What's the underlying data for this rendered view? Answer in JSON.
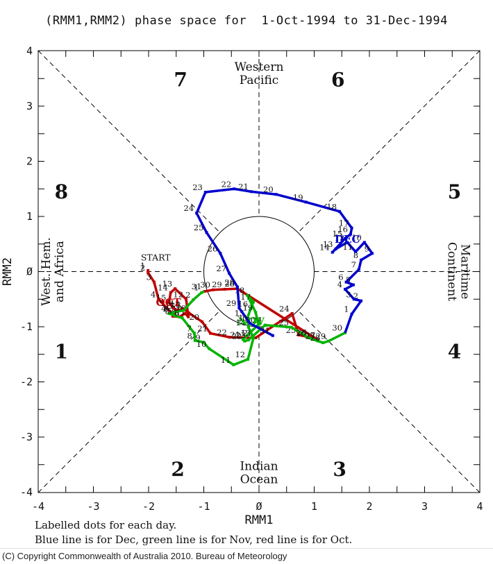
{
  "title": "(RMM1,RMM2) phase space for  1-Oct-1994 to 31-Dec-1994",
  "footer": {
    "line1": "Labelled dots for each day.",
    "line2": "Blue line is for Dec, green line is for Nov, red line is for Oct."
  },
  "copyright": "(C) Copyright Commonwealth of Australia 2010. Bureau of Meteorology",
  "chart_data": {
    "type": "line",
    "xlabel": "RMM1",
    "ylabel": "RMM2",
    "xlim": [
      -4,
      4
    ],
    "ylim": [
      -4,
      4
    ],
    "unit_circle_radius": 1,
    "x_ticks": [
      "-4",
      "-3",
      "-2",
      "-1",
      "Ø",
      "1",
      "2",
      "3",
      "4"
    ],
    "y_ticks": [
      "4",
      "3",
      "2",
      "1",
      "Ø",
      "-1",
      "-2",
      "-3",
      "-4"
    ],
    "start_label": {
      "text": "START",
      "x": -2.14,
      "y": 0.2
    },
    "phase_labels": [
      {
        "num": "1",
        "x": -3.58,
        "y": -1.46
      },
      {
        "num": "2",
        "x": -1.47,
        "y": -3.59
      },
      {
        "num": "3",
        "x": 1.46,
        "y": -3.59
      },
      {
        "num": "4",
        "x": 3.54,
        "y": -1.46
      },
      {
        "num": "5",
        "x": 3.54,
        "y": 1.44
      },
      {
        "num": "6",
        "x": 1.43,
        "y": 3.47
      },
      {
        "num": "7",
        "x": -1.42,
        "y": 3.47
      },
      {
        "num": "8",
        "x": -3.58,
        "y": 1.44
      }
    ],
    "region_labels": [
      {
        "name": "western-pacific",
        "lines": [
          "Western",
          "Pacific"
        ],
        "x": 0,
        "y": 3.6,
        "rotate": 0
      },
      {
        "name": "indian-ocean",
        "lines": [
          "Indian",
          "Ocean"
        ],
        "x": 0,
        "y": -3.64,
        "rotate": 0
      },
      {
        "name": "west-hem-africa",
        "lines": [
          "West. Hem.",
          "and Africa"
        ],
        "x": -3.74,
        "y": 0,
        "rotate": -90
      },
      {
        "name": "maritime-continent",
        "lines": [
          "Maritime",
          "Continent"
        ],
        "x": 3.62,
        "y": 0,
        "rotate": 90
      }
    ],
    "series": [
      {
        "name": "Oct",
        "color": "#c00000",
        "month_label": "OCT",
        "month_label_pos": {
          "x": -1.64,
          "y": -0.62
        },
        "points": [
          {
            "d": 1,
            "x": -2.01,
            "y": 0.02
          },
          {
            "d": 2,
            "x": -2.01,
            "y": -0.02
          },
          {
            "d": 3,
            "x": -1.9,
            "y": -0.19
          },
          {
            "d": 4,
            "x": -1.82,
            "y": -0.5
          },
          {
            "d": 5,
            "x": -1.67,
            "y": -0.66
          },
          {
            "d": 6,
            "x": -1.58,
            "y": -0.76
          },
          {
            "d": 7,
            "x": -1.49,
            "y": -0.7
          },
          {
            "d": 8,
            "x": -1.56,
            "y": -0.81
          },
          {
            "d": 9,
            "x": -1.44,
            "y": -0.82
          },
          {
            "d": 10,
            "x": -1.34,
            "y": -0.76
          },
          {
            "d": 11,
            "x": -1.28,
            "y": -0.82
          },
          {
            "d": 12,
            "x": -1.32,
            "y": -0.5
          },
          {
            "d": 13,
            "x": -1.52,
            "y": -0.31
          },
          {
            "d": 14,
            "x": -1.6,
            "y": -0.38
          },
          {
            "d": 15,
            "x": -1.63,
            "y": -0.56
          },
          {
            "d": 16,
            "x": -1.55,
            "y": -0.66
          },
          {
            "d": 17,
            "x": -1.47,
            "y": -0.71
          },
          {
            "d": 18,
            "x": -1.38,
            "y": -0.67
          },
          {
            "d": 19,
            "x": -1.27,
            "y": -0.75
          },
          {
            "d": 20,
            "x": -1.03,
            "y": -0.91
          },
          {
            "d": 21,
            "x": -0.88,
            "y": -1.12
          },
          {
            "d": 22,
            "x": -0.53,
            "y": -1.19
          },
          {
            "d": 23,
            "x": -0.06,
            "y": -1.2
          },
          {
            "d": 24,
            "x": 0.6,
            "y": -0.76
          },
          {
            "d": 25,
            "x": 0.72,
            "y": -1.15
          },
          {
            "d": 26,
            "x": 0.92,
            "y": -1.19
          },
          {
            "d": 27,
            "x": 1.07,
            "y": -1.24
          },
          {
            "d": 28,
            "x": -0.39,
            "y": -0.31
          },
          {
            "d": 29,
            "x": -0.62,
            "y": -0.32
          },
          {
            "d": 30,
            "x": -0.83,
            "y": -0.33
          },
          {
            "d": 31,
            "x": -0.99,
            "y": -0.36
          }
        ]
      },
      {
        "name": "Nov",
        "color": "#00b400",
        "month_label": "NOV",
        "month_label_pos": {
          "x": -0.14,
          "y": -0.97
        },
        "lead_in": {
          "x": -0.99,
          "y": -0.36
        },
        "points": [
          {
            "d": 1,
            "x": -1.04,
            "y": -0.38
          },
          {
            "d": 2,
            "x": -1.19,
            "y": -0.51
          },
          {
            "d": 3,
            "x": -1.36,
            "y": -0.7
          },
          {
            "d": 4,
            "x": -1.63,
            "y": -0.76
          },
          {
            "d": 5,
            "x": -1.52,
            "y": -0.8
          },
          {
            "d": 6,
            "x": -1.39,
            "y": -0.84
          },
          {
            "d": 7,
            "x": -1.17,
            "y": -1.12
          },
          {
            "d": 8,
            "x": -1.16,
            "y": -1.25
          },
          {
            "d": 9,
            "x": -1.01,
            "y": -1.28
          },
          {
            "d": 10,
            "x": -0.9,
            "y": -1.4
          },
          {
            "d": 11,
            "x": -0.46,
            "y": -1.69
          },
          {
            "d": 12,
            "x": -0.2,
            "y": -1.59
          },
          {
            "d": 13,
            "x": -0.1,
            "y": -1.2
          },
          {
            "d": 14,
            "x": -0.19,
            "y": -1.01
          },
          {
            "d": 15,
            "x": -0.21,
            "y": -0.84
          },
          {
            "d": 16,
            "x": -0.15,
            "y": -0.67
          },
          {
            "d": 17,
            "x": -0.1,
            "y": -0.55
          },
          {
            "d": 18,
            "x": -0.21,
            "y": -0.43
          },
          {
            "d": 19,
            "x": -0.06,
            "y": -0.74
          },
          {
            "d": 20,
            "x": -0.01,
            "y": -0.96
          },
          {
            "d": 21,
            "x": -0.29,
            "y": -1.23
          },
          {
            "d": 22,
            "x": -0.26,
            "y": -1.26
          },
          {
            "d": 23,
            "x": -0.19,
            "y": -1.24
          },
          {
            "d": 24,
            "x": 0.11,
            "y": -0.97
          },
          {
            "d": 25,
            "x": 0.59,
            "y": -1.01
          },
          {
            "d": 26,
            "x": 0.9,
            "y": -1.2
          },
          {
            "d": 27,
            "x": 1.07,
            "y": -1.26
          },
          {
            "d": 28,
            "x": 1.16,
            "y": -1.29
          },
          {
            "d": 29,
            "x": 1.26,
            "y": -1.26
          },
          {
            "d": 30,
            "x": 1.56,
            "y": -1.11
          }
        ]
      },
      {
        "name": "Dec",
        "color": "#0000cd",
        "month_label": "DEC",
        "month_label_pos": {
          "x": 1.6,
          "y": 0.52
        },
        "lead_in": {
          "x": 1.56,
          "y": -1.11
        },
        "points": [
          {
            "d": 1,
            "x": 1.68,
            "y": -0.77
          },
          {
            "d": 2,
            "x": 1.85,
            "y": -0.53
          },
          {
            "d": 3,
            "x": 1.72,
            "y": -0.5
          },
          {
            "d": 4,
            "x": 1.56,
            "y": -0.32
          },
          {
            "d": 5,
            "x": 1.71,
            "y": -0.24
          },
          {
            "d": 6,
            "x": 1.58,
            "y": -0.19
          },
          {
            "d": 7,
            "x": 1.81,
            "y": 0.04
          },
          {
            "d": 8,
            "x": 1.85,
            "y": 0.21
          },
          {
            "d": 9,
            "x": 2.05,
            "y": 0.33
          },
          {
            "d": 10,
            "x": 1.91,
            "y": 0.53
          },
          {
            "d": 11,
            "x": 1.75,
            "y": 0.36
          },
          {
            "d": 12,
            "x": 1.6,
            "y": 0.53
          },
          {
            "d": 13,
            "x": 1.39,
            "y": 0.41
          },
          {
            "d": 14,
            "x": 1.33,
            "y": 0.35
          },
          {
            "d": 15,
            "x": 1.56,
            "y": 0.6
          },
          {
            "d": 16,
            "x": 1.66,
            "y": 0.68
          },
          {
            "d": 17,
            "x": 1.68,
            "y": 0.79
          },
          {
            "d": 18,
            "x": 1.46,
            "y": 1.09
          },
          {
            "d": 19,
            "x": 0.85,
            "y": 1.26
          },
          {
            "d": 20,
            "x": 0.31,
            "y": 1.4
          },
          {
            "d": 21,
            "x": -0.14,
            "y": 1.45
          },
          {
            "d": 22,
            "x": -0.45,
            "y": 1.5
          },
          {
            "d": 23,
            "x": -0.97,
            "y": 1.44
          },
          {
            "d": 24,
            "x": -1.13,
            "y": 1.06
          },
          {
            "d": 25,
            "x": -0.95,
            "y": 0.71
          },
          {
            "d": 26,
            "x": -0.7,
            "y": 0.33
          },
          {
            "d": 27,
            "x": -0.54,
            "y": -0.03
          },
          {
            "d": 28,
            "x": -0.39,
            "y": -0.28
          },
          {
            "d": 29,
            "x": -0.36,
            "y": -0.66
          },
          {
            "d": 30,
            "x": -0.16,
            "y": -0.94
          },
          {
            "d": 31,
            "x": 0.25,
            "y": -1.16
          }
        ]
      }
    ]
  }
}
